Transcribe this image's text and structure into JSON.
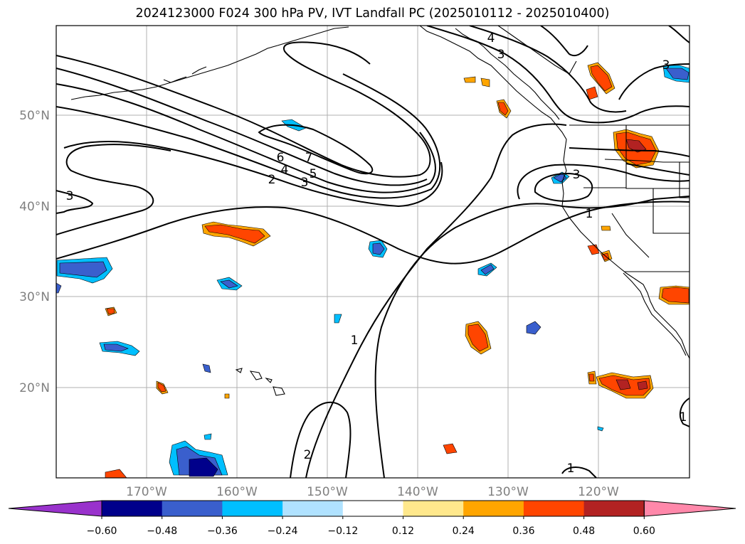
{
  "title": "2024123000 F024 300 hPa PV, IVT Landfall PC (2025010112 - 2025010400)",
  "latitude_labels": [
    "50°N",
    "40°N",
    "30°N",
    "20°N"
  ],
  "longitude_labels": [
    "170°W",
    "160°W",
    "150°W",
    "140°W",
    "130°W",
    "120°W"
  ],
  "contour_labels": [
    "6",
    "7",
    "4",
    "5",
    "2",
    "3",
    "3",
    "3",
    "1",
    "4",
    "3",
    "3",
    "1",
    "2",
    "1",
    "1"
  ],
  "colorbar": {
    "tick_labels": [
      "−0.60",
      "−0.48",
      "−0.36",
      "−0.24",
      "−0.12",
      "0.12",
      "0.24",
      "0.36",
      "0.48",
      "0.60"
    ],
    "colors": [
      "#9932cc",
      "#00008b",
      "#3a5fcd",
      "#00bfff",
      "#b0e2ff",
      "#ffffff",
      "#ffe88c",
      "#ffa500",
      "#ff4500",
      "#b22222",
      "#ff88aa"
    ]
  },
  "shading_colors": {
    "neg_light": "#b0e2ff",
    "neg_mid": "#00bfff",
    "neg_strong": "#3a5fcd",
    "neg_max": "#00008b",
    "pos_light": "#ffe88c",
    "pos_mid": "#ffa500",
    "pos_strong": "#ff4500",
    "pos_max": "#b22222"
  }
}
